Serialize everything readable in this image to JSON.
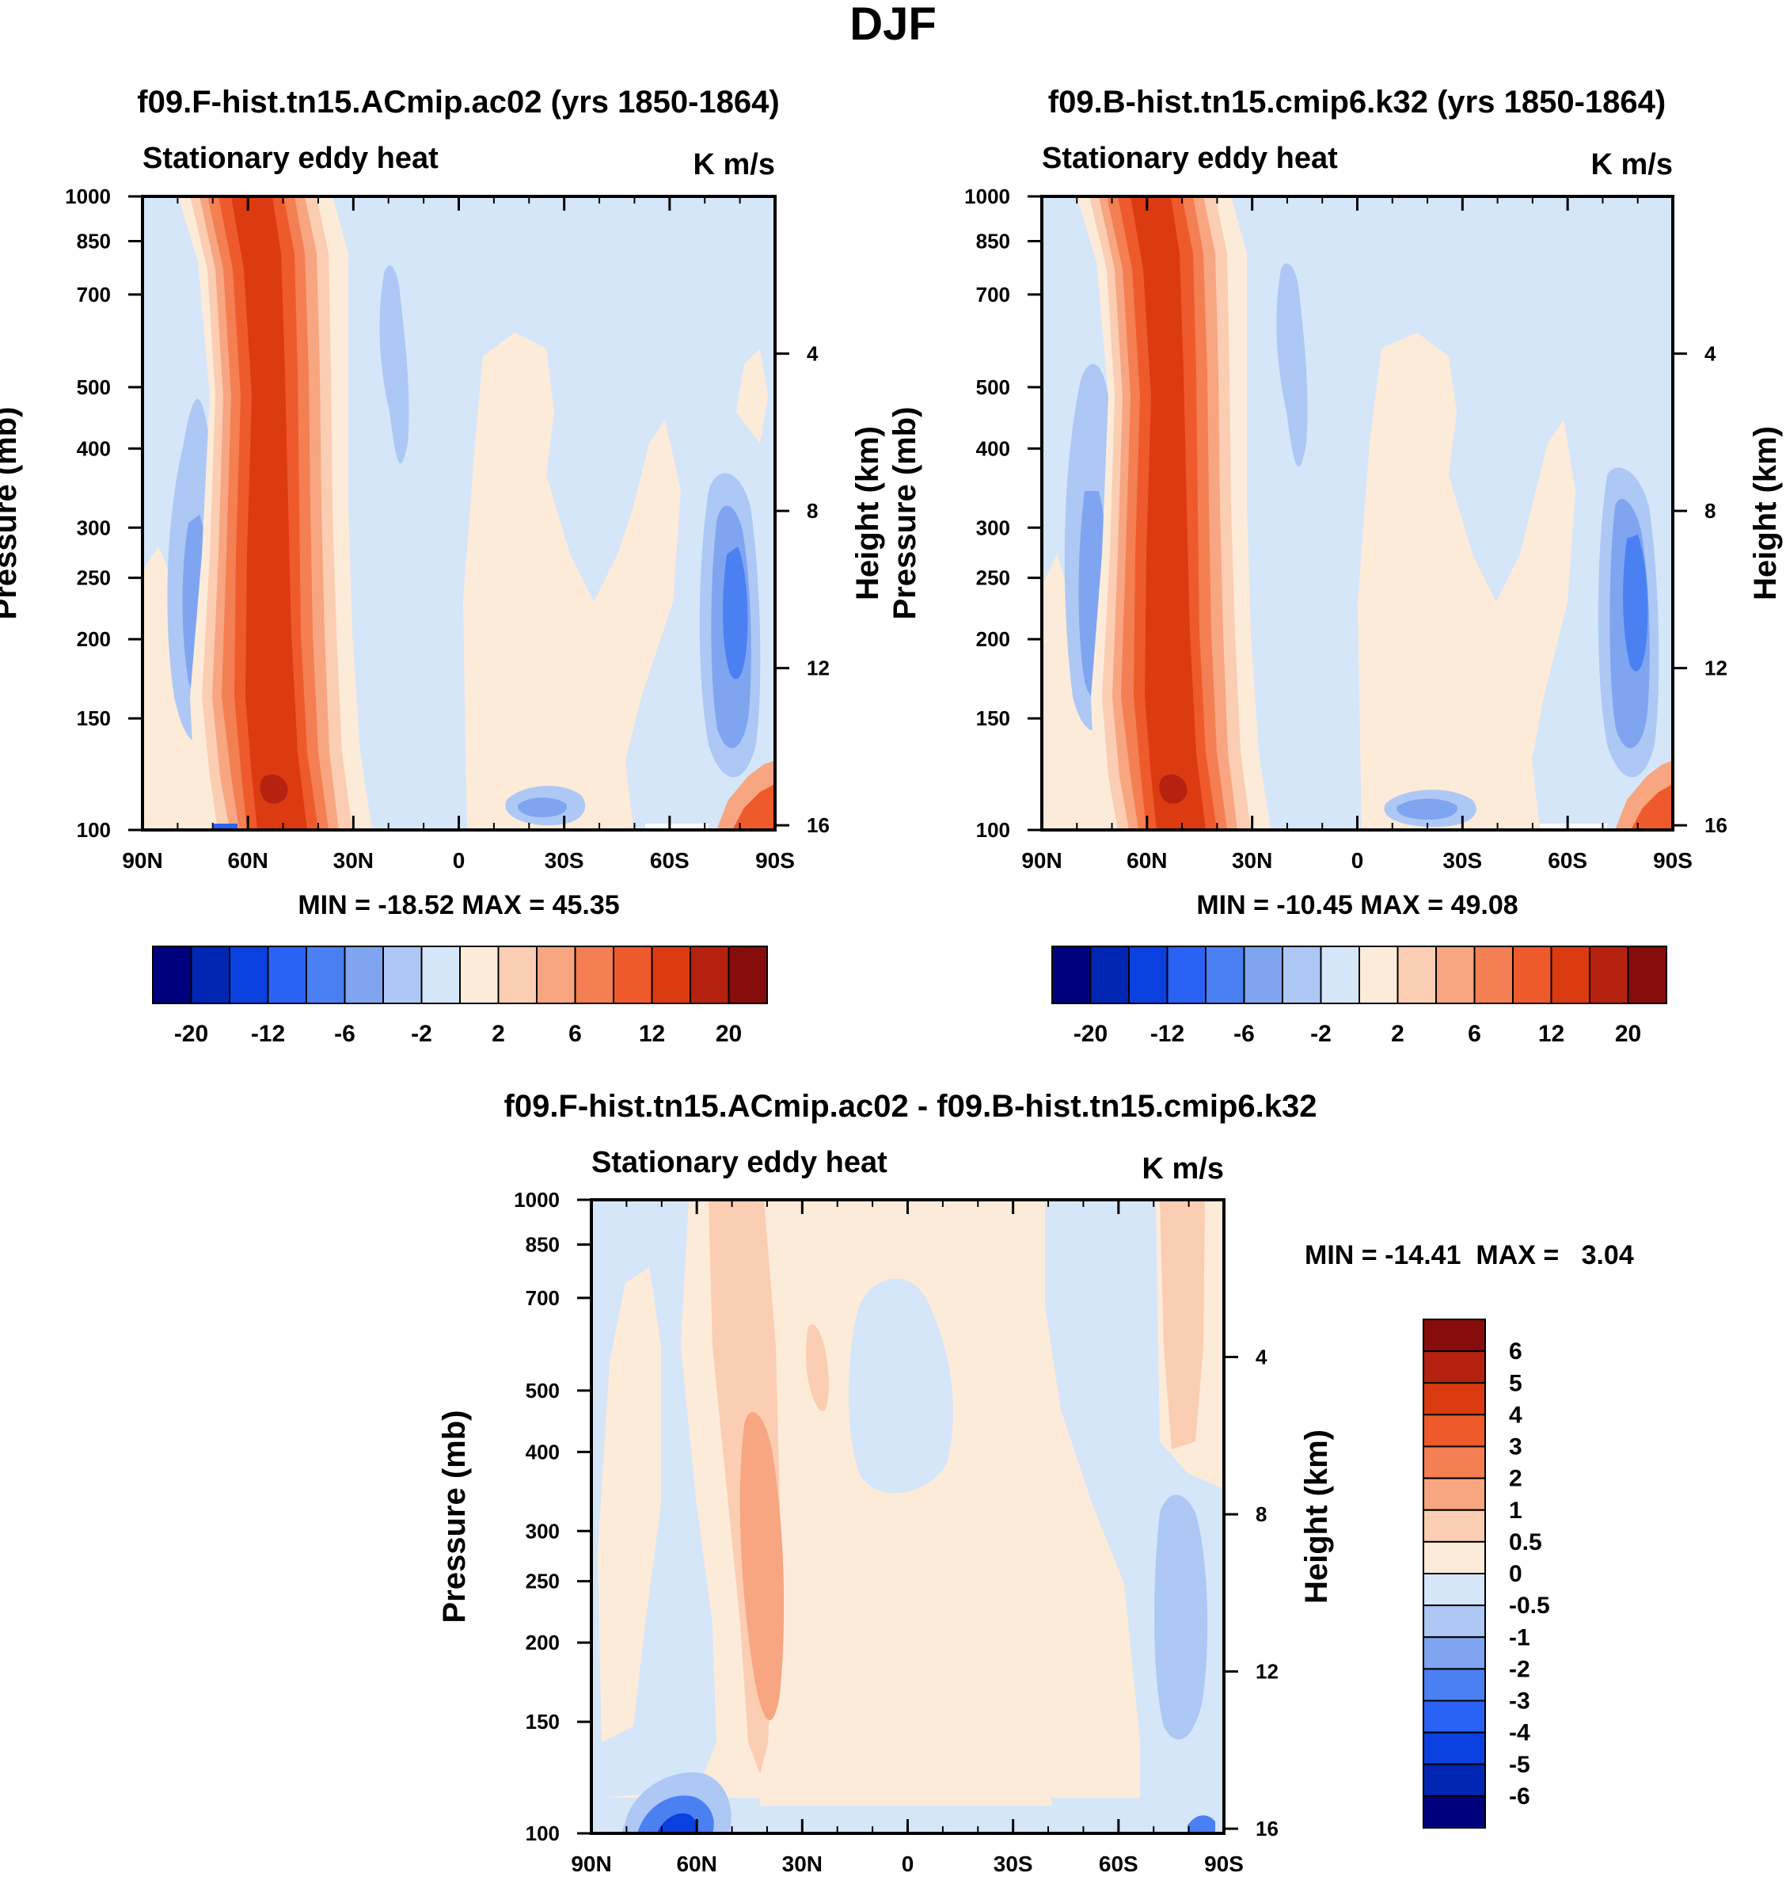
{
  "figure": {
    "title": "DJF"
  },
  "colors": {
    "full": [
      "#00007f",
      "#0026b3",
      "#0a40e0",
      "#2a62f5",
      "#4a80f2",
      "#7fa5f0",
      "#adc8f5",
      "#d6e6f9",
      "#fdebd9",
      "#fbcdb2",
      "#f8a581",
      "#f37f53",
      "#ef5a2c",
      "#dc3a10",
      "#b52210",
      "#870d0d"
    ],
    "diff": [
      "#00007f",
      "#0026b3",
      "#0a40e0",
      "#2a62f5",
      "#4a80f2",
      "#7fa5f0",
      "#adc8f5",
      "#d6e6f9",
      "#fdebd9",
      "#fbcdb2",
      "#f8a581",
      "#f37f53",
      "#ef5a2c",
      "#dc3a10",
      "#b52210",
      "#870d0d"
    ]
  },
  "chart_data": [
    {
      "type": "heatmap",
      "id": "model-a",
      "title": "f09.F-hist.tn15.ACmip.ac02 (yrs 1850-1864)",
      "subtitle_left": "Stationary eddy heat",
      "subtitle_right": "K m/s",
      "xlabel": "",
      "ylabel": "Pressure (mb)",
      "y2label": "Height (km)",
      "xlim": [
        90,
        -90
      ],
      "ylim": [
        1000,
        100
      ],
      "x_ticks": [
        90,
        60,
        30,
        0,
        -30,
        -60,
        -90
      ],
      "x_tick_labels": [
        "90N",
        "60N",
        "30N",
        "0",
        "30S",
        "60S",
        "90S"
      ],
      "y_ticks": [
        100,
        150,
        200,
        250,
        300,
        400,
        500,
        700,
        850,
        1000
      ],
      "y_tick_labels": [
        "100",
        "150",
        "200",
        "250",
        "300",
        "400",
        "500",
        "700",
        "850",
        "1000"
      ],
      "y2_ticks_km": [
        16,
        12,
        8,
        4
      ],
      "y2_tick_labels": [
        "16",
        "12",
        "8",
        "4"
      ],
      "min": -18.52,
      "max": 45.35,
      "minmax_label": "MIN = -18.52  MAX =  45.35",
      "levels": [
        -20,
        -16,
        -12,
        -8,
        -6,
        -4,
        -2,
        0,
        2,
        4,
        6,
        8,
        12,
        16,
        20
      ],
      "colorbar_labels": [
        "-20",
        "-12",
        "-6",
        "-2",
        "2",
        "6",
        "12",
        "20"
      ],
      "colorbar_label_levels": [
        -20,
        -12,
        -6,
        -2,
        2,
        6,
        12,
        20
      ]
    },
    {
      "type": "heatmap",
      "id": "model-b",
      "title": "f09.B-hist.tn15.cmip6.k32 (yrs 1850-1864)",
      "subtitle_left": "Stationary eddy heat",
      "subtitle_right": "K m/s",
      "xlabel": "",
      "ylabel": "Pressure (mb)",
      "y2label": "Height (km)",
      "xlim": [
        90,
        -90
      ],
      "ylim": [
        1000,
        100
      ],
      "x_ticks": [
        90,
        60,
        30,
        0,
        -30,
        -60,
        -90
      ],
      "x_tick_labels": [
        "90N",
        "60N",
        "30N",
        "0",
        "30S",
        "60S",
        "90S"
      ],
      "y_ticks": [
        100,
        150,
        200,
        250,
        300,
        400,
        500,
        700,
        850,
        1000
      ],
      "y_tick_labels": [
        "100",
        "150",
        "200",
        "250",
        "300",
        "400",
        "500",
        "700",
        "850",
        "1000"
      ],
      "y2_ticks_km": [
        16,
        12,
        8,
        4
      ],
      "y2_tick_labels": [
        "16",
        "12",
        "8",
        "4"
      ],
      "min": -10.45,
      "max": 49.08,
      "minmax_label": "MIN = -10.45  MAX =  49.08",
      "levels": [
        -20,
        -16,
        -12,
        -8,
        -6,
        -4,
        -2,
        0,
        2,
        4,
        6,
        8,
        12,
        16,
        20
      ],
      "colorbar_labels": [
        "-20",
        "-12",
        "-6",
        "-2",
        "2",
        "6",
        "12",
        "20"
      ],
      "colorbar_label_levels": [
        -20,
        -12,
        -6,
        -2,
        2,
        6,
        12,
        20
      ]
    },
    {
      "type": "heatmap",
      "id": "difference",
      "title": "f09.F-hist.tn15.ACmip.ac02 - f09.B-hist.tn15.cmip6.k32",
      "subtitle_left": "Stationary eddy heat",
      "subtitle_right": "K m/s",
      "xlabel": "",
      "ylabel": "Pressure (mb)",
      "y2label": "Height (km)",
      "xlim": [
        90,
        -90
      ],
      "ylim": [
        1000,
        100
      ],
      "x_ticks": [
        90,
        60,
        30,
        0,
        -30,
        -60,
        -90
      ],
      "x_tick_labels": [
        "90N",
        "60N",
        "30N",
        "0",
        "30S",
        "60S",
        "90S"
      ],
      "y_ticks": [
        100,
        150,
        200,
        250,
        300,
        400,
        500,
        700,
        850,
        1000
      ],
      "y_tick_labels": [
        "100",
        "150",
        "200",
        "250",
        "300",
        "400",
        "500",
        "700",
        "850",
        "1000"
      ],
      "y2_ticks_km": [
        16,
        12,
        8,
        4
      ],
      "y2_tick_labels": [
        "16",
        "12",
        "8",
        "4"
      ],
      "min": -14.41,
      "max": 3.04,
      "minmax_label": "MIN = -14.41  MAX =   3.04",
      "levels": [
        -6,
        -5,
        -4,
        -3,
        -2,
        -1,
        -0.5,
        0,
        0.5,
        1,
        2,
        3,
        4,
        5,
        6
      ],
      "colorbar_labels": [
        "6",
        "5",
        "4",
        "3",
        "2",
        "1",
        "0.5",
        "0",
        "-0.5",
        "-1",
        "-2",
        "-3",
        "-4",
        "-5",
        "-6"
      ]
    }
  ]
}
